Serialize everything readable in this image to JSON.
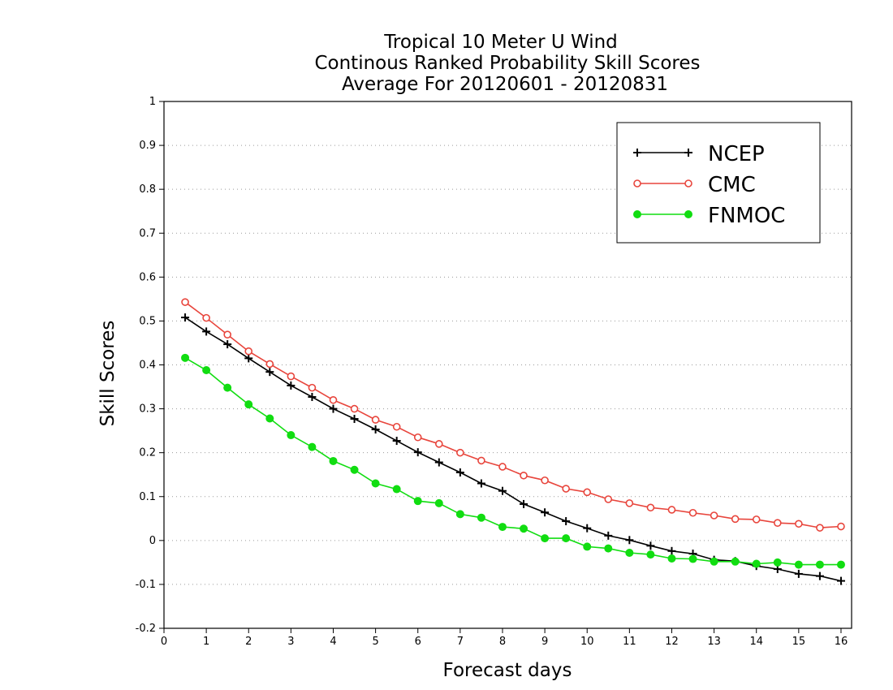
{
  "chart_data": {
    "type": "line",
    "title_lines": [
      "Tropical 10 Meter U Wind",
      "Continous Ranked Probability Skill Scores",
      "Average For 20120601 - 20120831"
    ],
    "xlabel": "Forecast days",
    "ylabel": "Skill Scores",
    "xlim": [
      0,
      16.25
    ],
    "ylim": [
      -0.2,
      1
    ],
    "x_ticks": [
      0,
      1,
      2,
      3,
      4,
      5,
      6,
      7,
      8,
      9,
      10,
      11,
      12,
      13,
      14,
      15,
      16
    ],
    "y_ticks": [
      -0.2,
      -0.1,
      0,
      0.1,
      0.2,
      0.3,
      0.4,
      0.5,
      0.6,
      0.7,
      0.8,
      0.9,
      1
    ],
    "y_tick_labels": [
      "-0.2",
      "-0.1",
      "0",
      "0.1",
      "0.2",
      "0.3",
      "0.4",
      "0.5",
      "0.6",
      "0.7",
      "0.8",
      "0.9",
      "1"
    ],
    "grid": "horizontal dotted",
    "legend_position": "top-right",
    "x": [
      0.5,
      1,
      1.5,
      2,
      2.5,
      3,
      3.5,
      4,
      4.5,
      5,
      5.5,
      6,
      6.5,
      7,
      7.5,
      8,
      8.5,
      9,
      9.5,
      10,
      10.5,
      11,
      11.5,
      12,
      12.5,
      13,
      13.5,
      14,
      14.5,
      15,
      15.5,
      16
    ],
    "series": [
      {
        "name": "NCEP",
        "color": "#000000",
        "marker": "plus",
        "values": [
          0.508,
          0.476,
          0.447,
          0.415,
          0.384,
          0.353,
          0.327,
          0.3,
          0.277,
          0.253,
          0.227,
          0.201,
          0.178,
          0.155,
          0.13,
          0.113,
          0.083,
          0.064,
          0.044,
          0.028,
          0.011,
          0.001,
          -0.012,
          -0.024,
          -0.03,
          -0.044,
          -0.047,
          -0.058,
          -0.065,
          -0.076,
          -0.081,
          -0.092
        ]
      },
      {
        "name": "CMC",
        "color": "#e8453c",
        "marker": "open-circle",
        "values": [
          0.543,
          0.507,
          0.469,
          0.431,
          0.402,
          0.374,
          0.348,
          0.32,
          0.3,
          0.275,
          0.259,
          0.235,
          0.22,
          0.2,
          0.182,
          0.168,
          0.148,
          0.137,
          0.118,
          0.11,
          0.094,
          0.085,
          0.075,
          0.07,
          0.063,
          0.057,
          0.049,
          0.048,
          0.04,
          0.038,
          0.029,
          0.032
        ]
      },
      {
        "name": "FNMOC",
        "color": "#11dd11",
        "marker": "filled-circle",
        "values": [
          0.416,
          0.388,
          0.348,
          0.31,
          0.278,
          0.24,
          0.213,
          0.181,
          0.161,
          0.13,
          0.117,
          0.09,
          0.085,
          0.06,
          0.052,
          0.031,
          0.027,
          0.005,
          0.005,
          -0.014,
          -0.018,
          -0.028,
          -0.032,
          -0.041,
          -0.042,
          -0.048,
          -0.048,
          -0.053,
          -0.05,
          -0.055,
          -0.055,
          -0.055
        ]
      }
    ]
  }
}
